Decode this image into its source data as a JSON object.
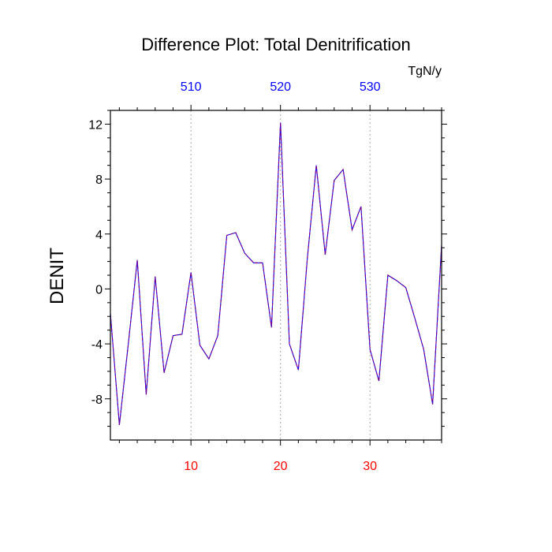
{
  "chart_data": {
    "type": "line",
    "title": "Difference Plot: Total Denitrification",
    "units": "TgN/y",
    "ylabel": "DENIT",
    "xlabel": "",
    "xlim": [
      1,
      38
    ],
    "ylim": [
      -11,
      13
    ],
    "bottom_ticks": [
      10,
      20,
      30
    ],
    "top_ticks": [
      510,
      520,
      530
    ],
    "top_axis_offset": 500,
    "y_ticks": [
      -8,
      -4,
      0,
      4,
      8,
      12
    ],
    "grid": "vertical dotted at bottom major ticks",
    "colors": {
      "bottom_tick_labels": "#ff0000",
      "top_tick_labels": "#0000ff",
      "line_dash": "#800080",
      "line_base": "#0000ff"
    },
    "x": [
      1,
      2,
      3,
      4,
      5,
      6,
      7,
      8,
      9,
      10,
      11,
      12,
      13,
      14,
      15,
      16,
      17,
      18,
      19,
      20,
      21,
      22,
      23,
      24,
      25,
      26,
      27,
      28,
      29,
      30,
      31,
      32,
      33,
      34,
      35,
      36,
      37,
      38
    ],
    "values": [
      -1.8,
      -9.9,
      -4.0,
      2.1,
      -7.7,
      0.9,
      -6.1,
      -3.4,
      -3.3,
      1.2,
      -4.1,
      -5.1,
      -3.4,
      3.9,
      4.1,
      2.6,
      1.9,
      1.9,
      -2.8,
      12.1,
      -4.0,
      -5.9,
      2.2,
      9.0,
      2.5,
      7.9,
      8.7,
      4.3,
      6.0,
      -4.4,
      -6.7,
      1.0,
      0.6,
      0.1,
      -2.1,
      -4.4,
      -8.4,
      3.2
    ]
  }
}
